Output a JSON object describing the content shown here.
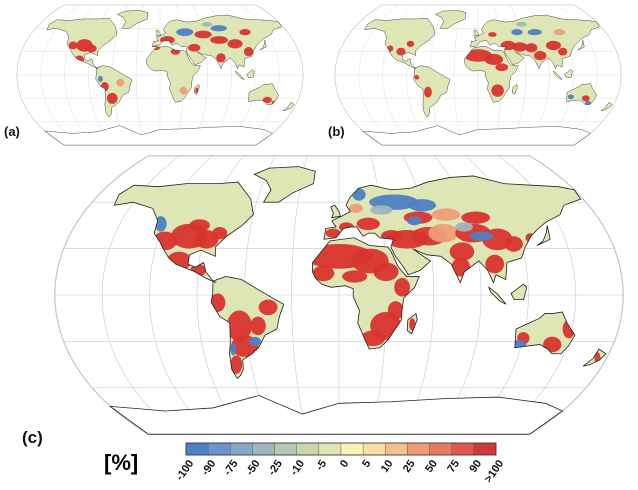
{
  "panels": {
    "a": {
      "label": "(a)"
    },
    "b": {
      "label": "(b)"
    },
    "c": {
      "label": "(c)"
    }
  },
  "legend": {
    "unit": "[%]",
    "bins": [
      {
        "label": "-100",
        "color": "#4f7fc4"
      },
      {
        "label": "-90",
        "color": "#6c94cf"
      },
      {
        "label": "-75",
        "color": "#88a8c7"
      },
      {
        "label": "-50",
        "color": "#9fb6bd"
      },
      {
        "label": "-25",
        "color": "#b6c7b2"
      },
      {
        "label": "-10",
        "color": "#cad7ad"
      },
      {
        "label": "-5",
        "color": "#dfe6b6"
      },
      {
        "label": "0",
        "color": "#f8f4b8"
      },
      {
        "label": "5",
        "color": "#f9dea5"
      },
      {
        "label": "10",
        "color": "#f5c08d"
      },
      {
        "label": "25",
        "color": "#ef9d77"
      },
      {
        "label": "50",
        "color": "#e87a62"
      },
      {
        "label": "75",
        "color": "#de574d"
      },
      {
        "label": "90",
        "color": "#d3363b"
      },
      {
        "label": ">100",
        "color": ""
      }
    ]
  },
  "colors": {
    "land": "#dfe6b6",
    "increase": "#d8342e",
    "increase_light": "#ef9d77",
    "decrease": "#4f7fc4",
    "decrease_light": "#9fb6bd",
    "graticule": "#c8c8c8",
    "coast": "#222222"
  }
}
